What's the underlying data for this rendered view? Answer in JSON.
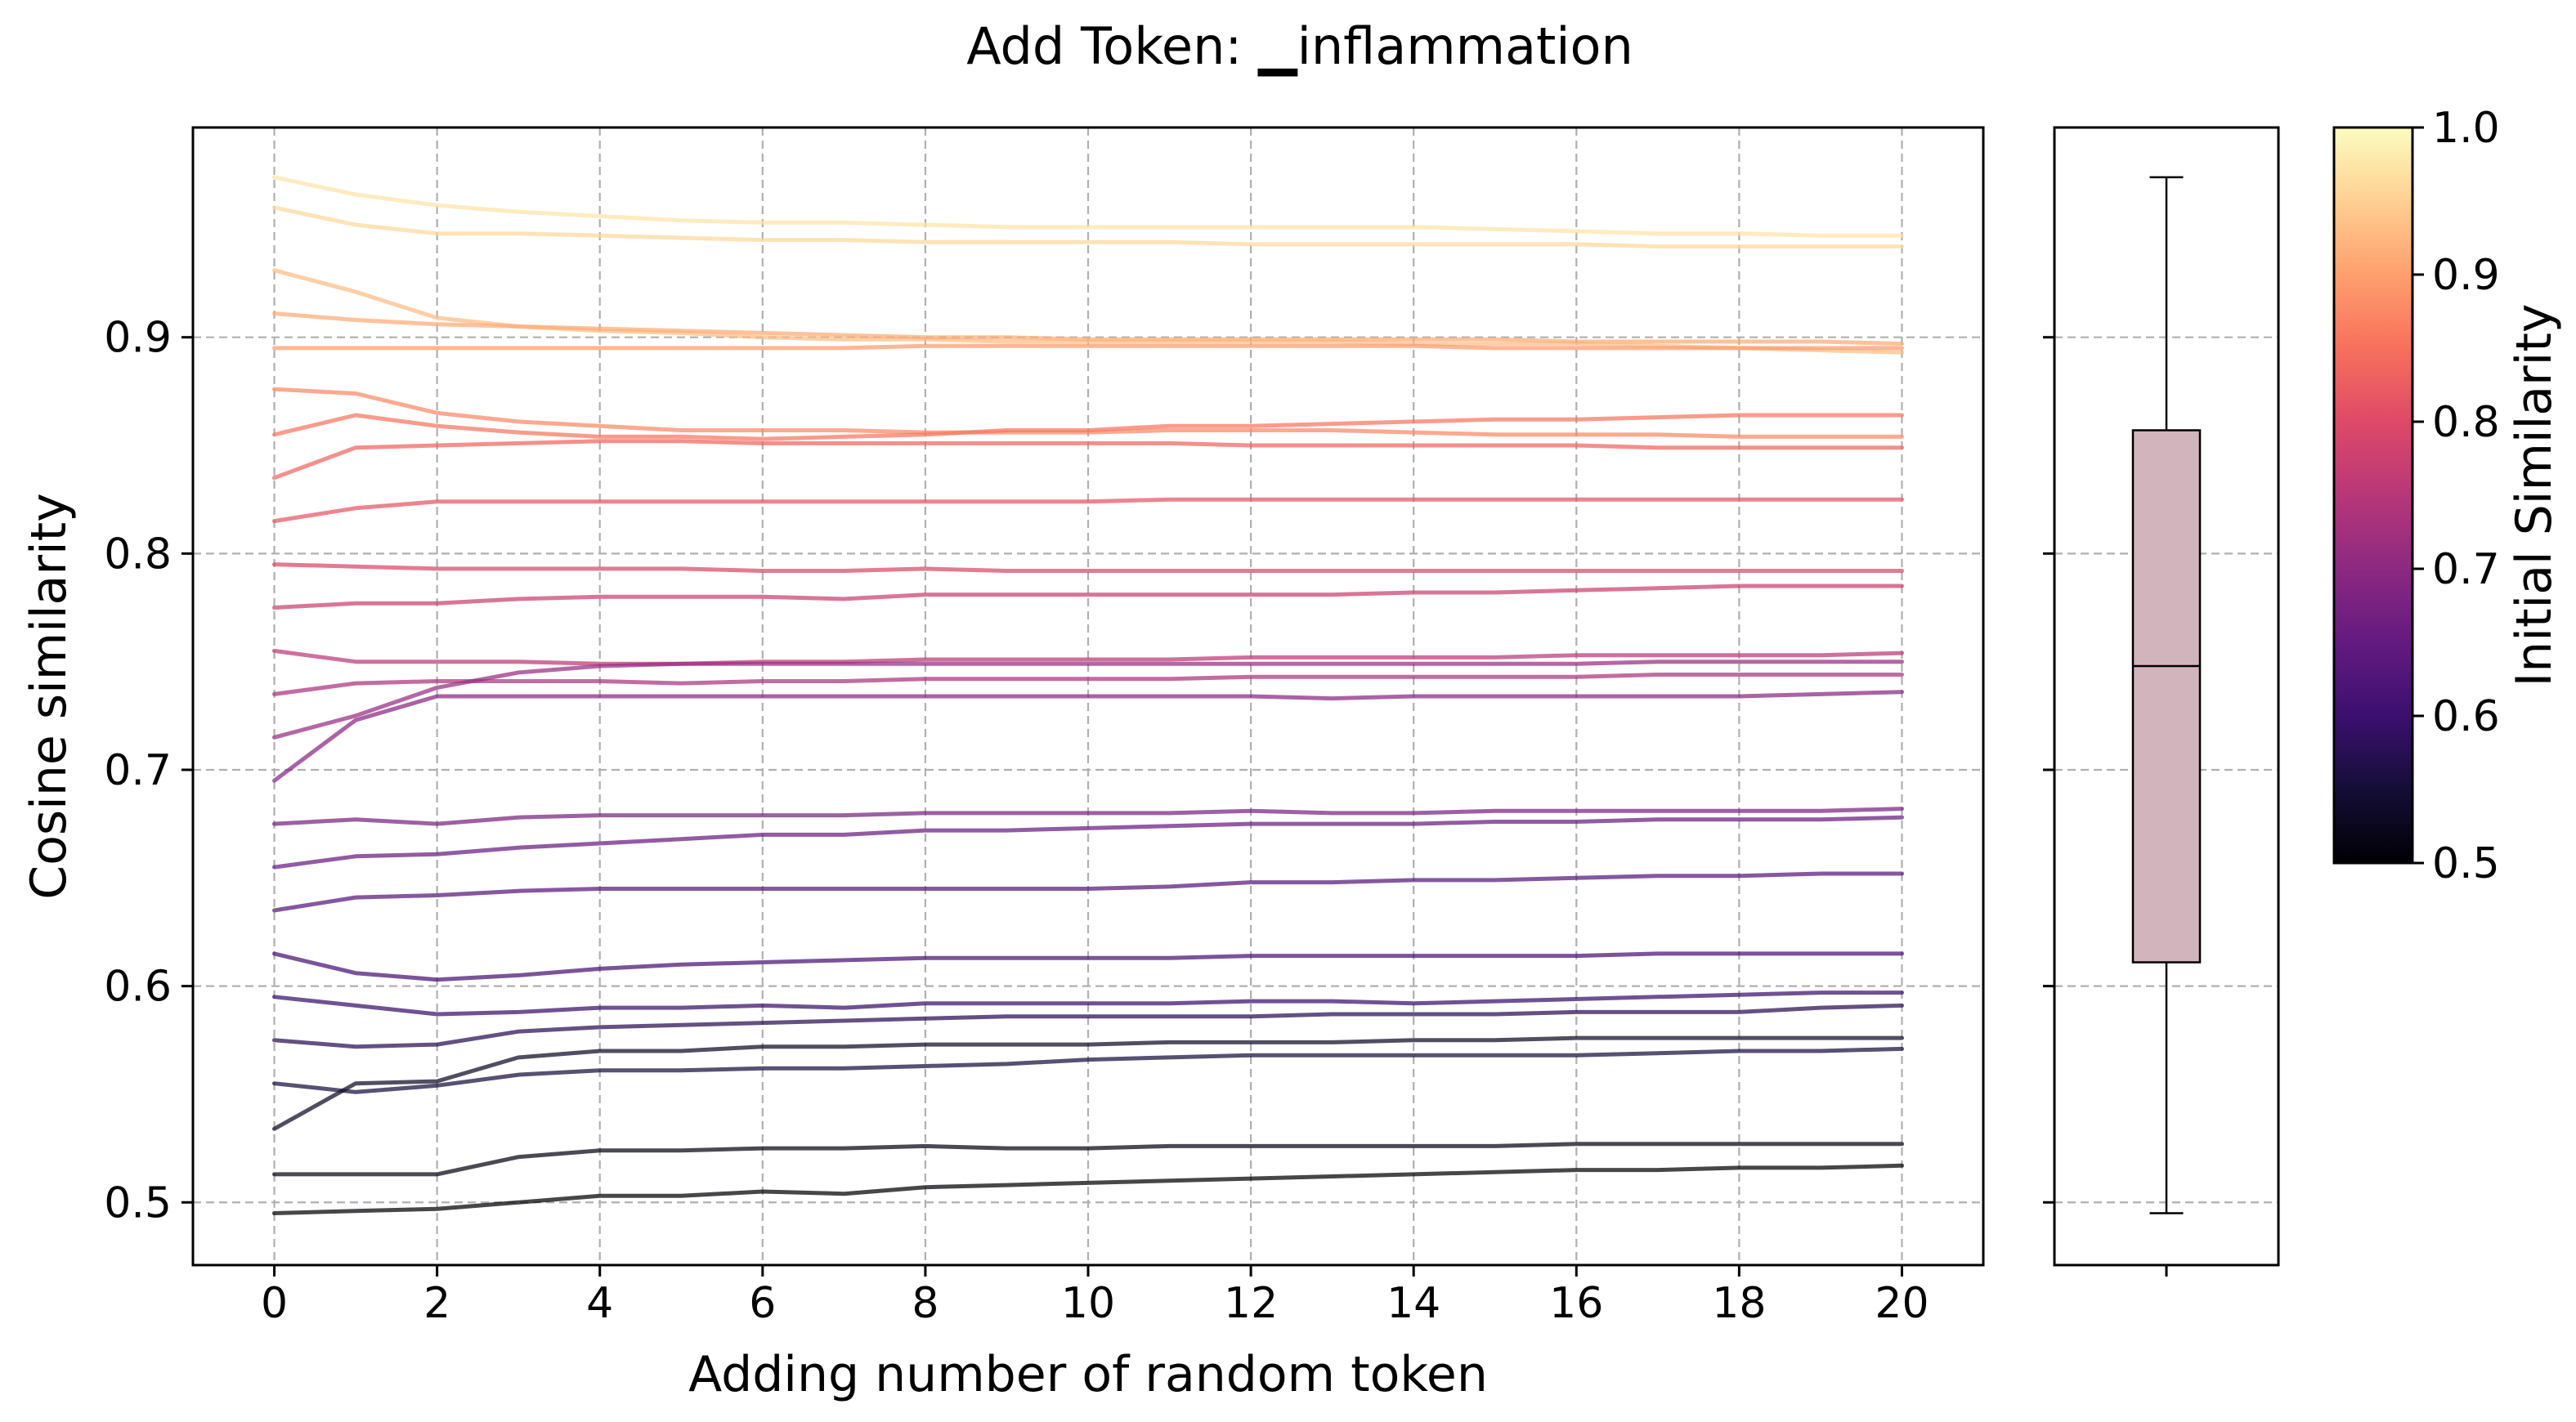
{
  "chart_data": [
    {
      "type": "line",
      "title": "Add Token: ▁inflammation",
      "xlabel": "Adding number of random token",
      "ylabel": "Cosine similarity",
      "xlim": [
        -1,
        21
      ],
      "ylim": [
        0.471,
        0.997
      ],
      "xticks": [
        0,
        2,
        4,
        6,
        8,
        10,
        12,
        14,
        16,
        18,
        20
      ],
      "yticks": [
        0.5,
        0.6,
        0.7,
        0.8,
        0.9
      ],
      "ytick_labels": [
        "0.5",
        "0.6",
        "0.7",
        "0.8",
        "0.9"
      ],
      "grid": true,
      "x": [
        0,
        1,
        2,
        3,
        4,
        5,
        6,
        7,
        8,
        9,
        10,
        11,
        12,
        13,
        14,
        15,
        16,
        17,
        18,
        19,
        20
      ],
      "colormap": "magma",
      "series": [
        {
          "values": [
            0.974,
            0.966,
            0.961,
            0.958,
            0.956,
            0.954,
            0.953,
            0.953,
            0.952,
            0.951,
            0.951,
            0.951,
            0.951,
            0.951,
            0.951,
            0.95,
            0.949,
            0.948,
            0.948,
            0.947,
            0.947
          ]
        },
        {
          "values": [
            0.96,
            0.952,
            0.948,
            0.948,
            0.947,
            0.946,
            0.945,
            0.945,
            0.944,
            0.944,
            0.944,
            0.944,
            0.943,
            0.943,
            0.943,
            0.943,
            0.943,
            0.942,
            0.942,
            0.942,
            0.942
          ]
        },
        {
          "values": [
            0.931,
            0.921,
            0.909,
            0.905,
            0.903,
            0.902,
            0.9,
            0.899,
            0.899,
            0.898,
            0.898,
            0.898,
            0.898,
            0.898,
            0.897,
            0.897,
            0.897,
            0.896,
            0.895,
            0.894,
            0.893
          ]
        },
        {
          "values": [
            0.911,
            0.908,
            0.906,
            0.905,
            0.904,
            0.903,
            0.902,
            0.901,
            0.9,
            0.9,
            0.899,
            0.899,
            0.899,
            0.899,
            0.899,
            0.899,
            0.898,
            0.898,
            0.898,
            0.898,
            0.897
          ]
        },
        {
          "values": [
            0.895,
            0.895,
            0.895,
            0.895,
            0.895,
            0.895,
            0.895,
            0.895,
            0.896,
            0.896,
            0.896,
            0.896,
            0.896,
            0.896,
            0.896,
            0.895,
            0.895,
            0.895,
            0.895,
            0.895,
            0.895
          ]
        },
        {
          "values": [
            0.876,
            0.874,
            0.865,
            0.861,
            0.859,
            0.857,
            0.857,
            0.857,
            0.856,
            0.856,
            0.856,
            0.857,
            0.857,
            0.857,
            0.856,
            0.855,
            0.855,
            0.855,
            0.854,
            0.854,
            0.854
          ]
        },
        {
          "values": [
            0.855,
            0.864,
            0.859,
            0.856,
            0.854,
            0.854,
            0.853,
            0.854,
            0.855,
            0.857,
            0.857,
            0.859,
            0.859,
            0.86,
            0.861,
            0.862,
            0.862,
            0.863,
            0.864,
            0.864,
            0.864
          ]
        },
        {
          "values": [
            0.835,
            0.849,
            0.85,
            0.851,
            0.852,
            0.852,
            0.851,
            0.851,
            0.851,
            0.851,
            0.851,
            0.851,
            0.85,
            0.85,
            0.85,
            0.85,
            0.85,
            0.849,
            0.849,
            0.849,
            0.849
          ]
        },
        {
          "values": [
            0.815,
            0.821,
            0.824,
            0.824,
            0.824,
            0.824,
            0.824,
            0.824,
            0.824,
            0.824,
            0.824,
            0.825,
            0.825,
            0.825,
            0.825,
            0.825,
            0.825,
            0.825,
            0.825,
            0.825,
            0.825
          ]
        },
        {
          "values": [
            0.795,
            0.794,
            0.793,
            0.793,
            0.793,
            0.793,
            0.792,
            0.792,
            0.793,
            0.792,
            0.792,
            0.792,
            0.792,
            0.792,
            0.792,
            0.792,
            0.792,
            0.792,
            0.792,
            0.792,
            0.792
          ]
        },
        {
          "values": [
            0.775,
            0.777,
            0.777,
            0.779,
            0.78,
            0.78,
            0.78,
            0.779,
            0.781,
            0.781,
            0.781,
            0.781,
            0.781,
            0.781,
            0.782,
            0.782,
            0.783,
            0.784,
            0.785,
            0.785,
            0.785
          ]
        },
        {
          "values": [
            0.755,
            0.75,
            0.75,
            0.75,
            0.749,
            0.749,
            0.75,
            0.75,
            0.751,
            0.751,
            0.751,
            0.751,
            0.752,
            0.752,
            0.752,
            0.752,
            0.753,
            0.753,
            0.753,
            0.753,
            0.754
          ]
        },
        {
          "values": [
            0.735,
            0.74,
            0.741,
            0.741,
            0.741,
            0.74,
            0.741,
            0.741,
            0.742,
            0.742,
            0.742,
            0.742,
            0.743,
            0.743,
            0.743,
            0.743,
            0.743,
            0.744,
            0.744,
            0.744,
            0.744
          ]
        },
        {
          "values": [
            0.715,
            0.725,
            0.738,
            0.745,
            0.748,
            0.749,
            0.749,
            0.749,
            0.749,
            0.749,
            0.749,
            0.749,
            0.749,
            0.749,
            0.749,
            0.749,
            0.749,
            0.75,
            0.75,
            0.75,
            0.75
          ]
        },
        {
          "values": [
            0.695,
            0.723,
            0.734,
            0.734,
            0.734,
            0.734,
            0.734,
            0.734,
            0.734,
            0.734,
            0.734,
            0.734,
            0.734,
            0.733,
            0.734,
            0.734,
            0.734,
            0.734,
            0.734,
            0.735,
            0.736
          ]
        },
        {
          "values": [
            0.675,
            0.677,
            0.675,
            0.678,
            0.679,
            0.679,
            0.679,
            0.679,
            0.68,
            0.68,
            0.68,
            0.68,
            0.681,
            0.68,
            0.68,
            0.681,
            0.681,
            0.681,
            0.681,
            0.681,
            0.682
          ]
        },
        {
          "values": [
            0.655,
            0.66,
            0.661,
            0.664,
            0.666,
            0.668,
            0.67,
            0.67,
            0.672,
            0.672,
            0.673,
            0.674,
            0.675,
            0.675,
            0.675,
            0.676,
            0.676,
            0.677,
            0.677,
            0.677,
            0.678
          ]
        },
        {
          "values": [
            0.635,
            0.641,
            0.642,
            0.644,
            0.645,
            0.645,
            0.645,
            0.645,
            0.645,
            0.645,
            0.645,
            0.646,
            0.648,
            0.648,
            0.649,
            0.649,
            0.65,
            0.651,
            0.651,
            0.652,
            0.652
          ]
        },
        {
          "values": [
            0.615,
            0.606,
            0.603,
            0.605,
            0.608,
            0.61,
            0.611,
            0.612,
            0.613,
            0.613,
            0.613,
            0.613,
            0.614,
            0.614,
            0.614,
            0.614,
            0.614,
            0.615,
            0.615,
            0.615,
            0.615
          ]
        },
        {
          "values": [
            0.595,
            0.591,
            0.587,
            0.588,
            0.59,
            0.59,
            0.591,
            0.59,
            0.592,
            0.592,
            0.592,
            0.592,
            0.593,
            0.593,
            0.592,
            0.593,
            0.594,
            0.595,
            0.596,
            0.597,
            0.597
          ]
        },
        {
          "values": [
            0.575,
            0.572,
            0.573,
            0.579,
            0.581,
            0.582,
            0.583,
            0.584,
            0.585,
            0.586,
            0.586,
            0.586,
            0.586,
            0.587,
            0.587,
            0.587,
            0.588,
            0.588,
            0.588,
            0.59,
            0.591
          ]
        },
        {
          "values": [
            0.555,
            0.551,
            0.554,
            0.559,
            0.561,
            0.561,
            0.562,
            0.562,
            0.563,
            0.564,
            0.566,
            0.567,
            0.568,
            0.568,
            0.568,
            0.568,
            0.568,
            0.569,
            0.57,
            0.57,
            0.571
          ]
        },
        {
          "values": [
            0.534,
            0.555,
            0.556,
            0.567,
            0.57,
            0.57,
            0.572,
            0.572,
            0.573,
            0.573,
            0.573,
            0.574,
            0.574,
            0.574,
            0.575,
            0.575,
            0.576,
            0.576,
            0.576,
            0.576,
            0.576
          ]
        },
        {
          "values": [
            0.513,
            0.513,
            0.513,
            0.521,
            0.524,
            0.524,
            0.525,
            0.525,
            0.526,
            0.525,
            0.525,
            0.526,
            0.526,
            0.526,
            0.526,
            0.526,
            0.527,
            0.527,
            0.527,
            0.527,
            0.527
          ]
        },
        {
          "values": [
            0.495,
            0.496,
            0.497,
            0.5,
            0.503,
            0.503,
            0.505,
            0.504,
            0.507,
            0.508,
            0.509,
            0.51,
            0.511,
            0.512,
            0.513,
            0.514,
            0.515,
            0.515,
            0.516,
            0.516,
            0.517
          ]
        }
      ]
    },
    {
      "type": "box",
      "ylim": [
        0.471,
        0.997
      ],
      "grid": true,
      "color": "#d2b4bc",
      "stats": {
        "min": 0.495,
        "q1": 0.611,
        "median": 0.748,
        "q3": 0.857,
        "max": 0.974
      }
    },
    {
      "type": "colorbar",
      "label": "Initial Similarity",
      "colormap": "magma",
      "range": [
        0.5,
        1.0
      ],
      "ticks": [
        "0.5",
        "0.6",
        "0.7",
        "0.8",
        "0.9",
        "1.0"
      ]
    }
  ]
}
